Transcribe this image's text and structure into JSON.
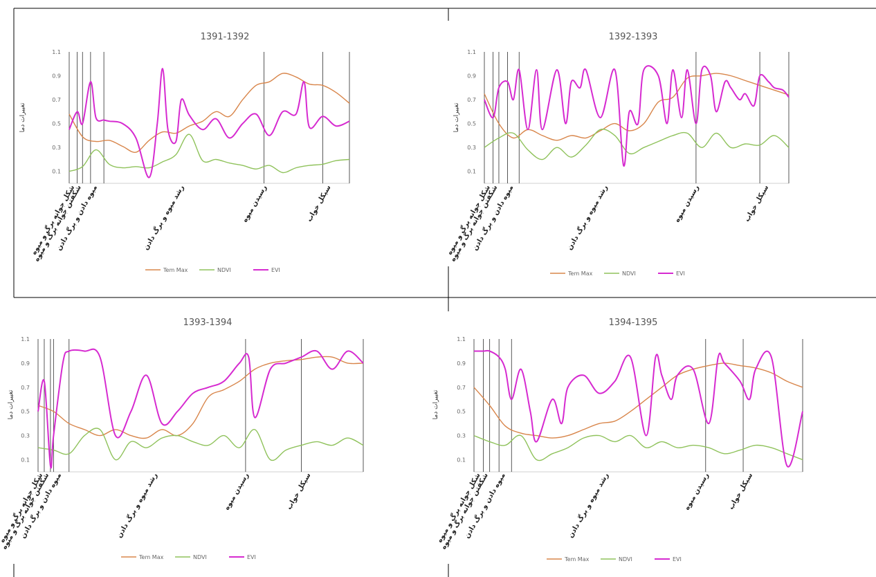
{
  "colors": {
    "tmax": "#d8854a",
    "ndvi": "#8fc25b",
    "evi": "#d62ad0",
    "stage_line": "#444444",
    "frame": "#000000"
  },
  "legend": [
    "Tem Max",
    "NDVI",
    "EVI"
  ],
  "chart_data": [
    {
      "type": "line",
      "title": "1391-1392",
      "ylabel": "تغییرات دما",
      "yticks": [
        "1.1",
        "0.9",
        "0.7",
        "0.5",
        "0.3",
        "0.1"
      ],
      "ylim": [
        0,
        1.1
      ],
      "stage_boundaries": [
        0,
        3,
        5,
        8,
        13,
        73,
        95,
        105
      ],
      "stage_labels": [
        "شکل جوانه برگ و میوه",
        "شکفتن جوانه برگ و میوه",
        "میوه دادن و برگ دادن",
        "رشد میوه و برگ دادن",
        "رسیدن میوه",
        "سیکل خواب"
      ],
      "series": [
        {
          "name": "Tem Max",
          "x": [
            0,
            5,
            10,
            15,
            20,
            25,
            30,
            35,
            40,
            45,
            50,
            55,
            60,
            65,
            70,
            75,
            80,
            85,
            90,
            95,
            100,
            105
          ],
          "values": [
            0.58,
            0.39,
            0.35,
            0.36,
            0.31,
            0.26,
            0.36,
            0.43,
            0.42,
            0.48,
            0.52,
            0.6,
            0.56,
            0.7,
            0.82,
            0.85,
            0.92,
            0.89,
            0.83,
            0.82,
            0.76,
            0.67
          ]
        },
        {
          "name": "NDVI",
          "x": [
            0,
            5,
            10,
            15,
            20,
            25,
            30,
            35,
            40,
            45,
            50,
            55,
            60,
            65,
            70,
            75,
            80,
            85,
            90,
            95,
            100,
            105
          ],
          "values": [
            0.1,
            0.14,
            0.28,
            0.16,
            0.13,
            0.14,
            0.13,
            0.18,
            0.24,
            0.41,
            0.19,
            0.2,
            0.17,
            0.15,
            0.12,
            0.15,
            0.09,
            0.13,
            0.15,
            0.16,
            0.19,
            0.2
          ]
        },
        {
          "name": "EVI",
          "x": [
            0,
            3,
            5,
            8,
            10,
            13,
            15,
            20,
            25,
            30,
            33,
            35,
            37,
            40,
            42,
            45,
            50,
            55,
            60,
            65,
            70,
            75,
            80,
            85,
            88,
            90,
            95,
            100,
            105
          ],
          "values": [
            0.45,
            0.6,
            0.5,
            0.85,
            0.55,
            0.53,
            0.52,
            0.5,
            0.38,
            0.05,
            0.5,
            0.96,
            0.45,
            0.35,
            0.7,
            0.57,
            0.45,
            0.54,
            0.38,
            0.5,
            0.58,
            0.4,
            0.6,
            0.58,
            0.85,
            0.47,
            0.56,
            0.48,
            0.52
          ]
        }
      ]
    },
    {
      "type": "line",
      "title": "1392-1393",
      "ylabel": "تغییرات دما",
      "yticks": [
        "1.1",
        "0.9",
        "0.7",
        "0.5",
        "0.3",
        "0.1"
      ],
      "ylim": [
        0,
        1.1
      ],
      "stage_boundaries": [
        0,
        3,
        5,
        8,
        12,
        73,
        95,
        105
      ],
      "stage_labels": [
        "شکل جوانه برگ و میوه",
        "شکفتن جوانه برگ و میوه",
        "میوه دادن و برگ دادن",
        "رشد میوه و برگ دادن",
        "رسیدن میوه",
        "سیکل خواب"
      ],
      "series": [
        {
          "name": "Tem Max",
          "x": [
            0,
            5,
            10,
            15,
            20,
            25,
            30,
            35,
            40,
            45,
            50,
            55,
            60,
            65,
            70,
            75,
            80,
            85,
            90,
            95,
            100,
            105
          ],
          "values": [
            0.75,
            0.5,
            0.38,
            0.45,
            0.4,
            0.36,
            0.4,
            0.38,
            0.44,
            0.5,
            0.44,
            0.5,
            0.68,
            0.72,
            0.88,
            0.9,
            0.92,
            0.9,
            0.86,
            0.82,
            0.78,
            0.74
          ]
        },
        {
          "name": "NDVI",
          "x": [
            0,
            5,
            10,
            15,
            20,
            25,
            30,
            35,
            40,
            45,
            50,
            55,
            60,
            65,
            70,
            75,
            80,
            85,
            90,
            95,
            100,
            105
          ],
          "values": [
            0.3,
            0.38,
            0.42,
            0.28,
            0.2,
            0.3,
            0.22,
            0.32,
            0.45,
            0.4,
            0.25,
            0.3,
            0.35,
            0.4,
            0.42,
            0.3,
            0.42,
            0.3,
            0.33,
            0.32,
            0.4,
            0.3
          ]
        },
        {
          "name": "EVI",
          "x": [
            0,
            3,
            5,
            8,
            10,
            12,
            15,
            18,
            20,
            25,
            28,
            30,
            33,
            35,
            40,
            45,
            48,
            50,
            53,
            55,
            60,
            63,
            65,
            68,
            70,
            73,
            75,
            78,
            80,
            83,
            85,
            88,
            90,
            93,
            95,
            98,
            100,
            103,
            105
          ],
          "values": [
            0.7,
            0.55,
            0.8,
            0.85,
            0.7,
            0.95,
            0.45,
            0.95,
            0.45,
            0.95,
            0.5,
            0.85,
            0.8,
            0.95,
            0.55,
            0.95,
            0.15,
            0.6,
            0.5,
            0.95,
            0.9,
            0.5,
            0.95,
            0.55,
            0.95,
            0.5,
            0.95,
            0.9,
            0.6,
            0.85,
            0.8,
            0.7,
            0.75,
            0.65,
            0.9,
            0.85,
            0.8,
            0.78,
            0.72
          ]
        }
      ]
    },
    {
      "type": "line",
      "title": "1393-1394",
      "ylabel": "تغییرات دما",
      "yticks": [
        "1.1",
        "0.9",
        "0.7",
        "0.5",
        "0.3",
        "0.1"
      ],
      "ylim": [
        0,
        1.1
      ],
      "stage_boundaries": [
        0,
        2,
        4,
        5,
        10,
        67,
        85,
        105
      ],
      "stage_labels": [
        "شکل جوانه برگ و میوه",
        "شکفتن جوانه برگ و میوه",
        "میوه دادن و برگ دادن",
        "رشد میوه و برگ دادن",
        "رسیدن میوه",
        "سیکل خواب"
      ],
      "series": [
        {
          "name": "Tem Max",
          "x": [
            0,
            5,
            10,
            15,
            20,
            25,
            30,
            35,
            40,
            45,
            50,
            55,
            60,
            65,
            70,
            75,
            80,
            85,
            90,
            95,
            100,
            105
          ],
          "values": [
            0.55,
            0.5,
            0.4,
            0.35,
            0.3,
            0.35,
            0.3,
            0.28,
            0.35,
            0.3,
            0.4,
            0.62,
            0.68,
            0.75,
            0.85,
            0.9,
            0.92,
            0.93,
            0.95,
            0.95,
            0.9,
            0.9
          ]
        },
        {
          "name": "NDVI",
          "x": [
            0,
            5,
            10,
            15,
            20,
            25,
            30,
            35,
            40,
            45,
            50,
            55,
            60,
            65,
            70,
            75,
            80,
            85,
            90,
            95,
            100,
            105
          ],
          "values": [
            0.2,
            0.18,
            0.15,
            0.3,
            0.35,
            0.1,
            0.25,
            0.2,
            0.28,
            0.3,
            0.25,
            0.22,
            0.3,
            0.2,
            0.35,
            0.1,
            0.18,
            0.22,
            0.25,
            0.22,
            0.28,
            0.22
          ]
        },
        {
          "name": "EVI",
          "x": [
            0,
            2,
            4,
            5,
            8,
            10,
            15,
            20,
            25,
            30,
            35,
            40,
            45,
            50,
            55,
            60,
            65,
            68,
            70,
            75,
            80,
            85,
            90,
            95,
            100,
            105
          ],
          "values": [
            0.5,
            0.75,
            0.05,
            0.3,
            0.9,
            1.0,
            1.0,
            0.95,
            0.3,
            0.5,
            0.8,
            0.4,
            0.5,
            0.65,
            0.7,
            0.75,
            0.9,
            0.95,
            0.45,
            0.85,
            0.9,
            0.95,
            1.0,
            0.85,
            1.0,
            0.9
          ]
        }
      ]
    },
    {
      "type": "line",
      "title": "1394-1395",
      "ylabel": "تغییرات دما",
      "yticks": [
        "1.1",
        "0.9",
        "0.7",
        "0.5",
        "0.3",
        "0.1"
      ],
      "ylim": [
        0,
        1.1
      ],
      "stage_boundaries": [
        0,
        3,
        5,
        8,
        12,
        74,
        86,
        105
      ],
      "stage_labels": [
        "شکل جوانه برگ و میوه",
        "شکفتن جوانه برگ و میوه",
        "میوه دادن و برگ دادن",
        "رشد میوه و برگ دادن",
        "رسیدن میوه",
        "سیکل خواب"
      ],
      "series": [
        {
          "name": "Tem Max",
          "x": [
            0,
            5,
            10,
            15,
            20,
            25,
            30,
            35,
            40,
            45,
            50,
            55,
            60,
            65,
            70,
            75,
            80,
            85,
            90,
            95,
            100,
            105
          ],
          "values": [
            0.7,
            0.55,
            0.38,
            0.32,
            0.3,
            0.28,
            0.3,
            0.35,
            0.4,
            0.42,
            0.5,
            0.6,
            0.7,
            0.8,
            0.85,
            0.88,
            0.9,
            0.88,
            0.86,
            0.82,
            0.75,
            0.7
          ]
        },
        {
          "name": "NDVI",
          "x": [
            0,
            5,
            10,
            15,
            20,
            25,
            30,
            35,
            40,
            45,
            50,
            55,
            60,
            65,
            70,
            75,
            80,
            85,
            90,
            95,
            100,
            105
          ],
          "values": [
            0.3,
            0.25,
            0.22,
            0.3,
            0.1,
            0.15,
            0.2,
            0.28,
            0.3,
            0.25,
            0.3,
            0.2,
            0.25,
            0.2,
            0.22,
            0.2,
            0.15,
            0.18,
            0.22,
            0.2,
            0.15,
            0.1
          ]
        },
        {
          "name": "EVI",
          "x": [
            0,
            3,
            5,
            8,
            10,
            12,
            15,
            18,
            20,
            25,
            28,
            30,
            35,
            40,
            45,
            50,
            55,
            58,
            60,
            63,
            65,
            70,
            75,
            78,
            80,
            85,
            88,
            90,
            95,
            100,
            105
          ],
          "values": [
            1.0,
            1.0,
            1.0,
            0.95,
            0.85,
            0.6,
            0.85,
            0.5,
            0.25,
            0.6,
            0.4,
            0.7,
            0.8,
            0.65,
            0.75,
            0.95,
            0.3,
            0.95,
            0.8,
            0.6,
            0.8,
            0.85,
            0.4,
            0.95,
            0.9,
            0.75,
            0.6,
            0.85,
            0.95,
            0.05,
            0.5
          ]
        }
      ]
    }
  ]
}
